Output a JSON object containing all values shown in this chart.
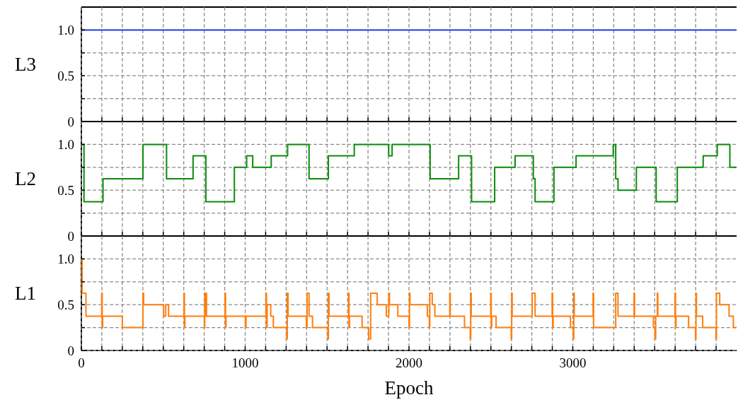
{
  "chart_data": [
    {
      "type": "step",
      "ylabel": "L3",
      "grid": true,
      "tick_labels": "y",
      "xlim": [
        0,
        4000
      ],
      "ylim": [
        0,
        1.25
      ],
      "yticks": [
        {
          "value": 0,
          "label": "0"
        },
        {
          "value": 0.25,
          "label": null
        },
        {
          "value": 0.5,
          "label": "0.5"
        },
        {
          "value": 0.75,
          "label": null
        },
        {
          "value": 1,
          "label": "1.0"
        }
      ],
      "xticks": [
        0,
        {
          "value": 125,
          "label": null
        },
        {
          "value": 250,
          "label": null
        },
        {
          "value": 375,
          "label": null
        },
        {
          "value": 500,
          "label": null
        },
        {
          "value": 625,
          "label": null
        },
        {
          "value": 750,
          "label": null
        },
        {
          "value": 875,
          "label": null
        },
        1000,
        {
          "value": 1125,
          "label": null
        },
        {
          "value": 1250,
          "label": null
        },
        {
          "value": 1375,
          "label": null
        },
        {
          "value": 1500,
          "label": null
        },
        {
          "value": 1625,
          "label": null
        },
        {
          "value": 1750,
          "label": null
        },
        {
          "value": 1875,
          "label": null
        },
        2000,
        {
          "value": 2125,
          "label": null
        },
        {
          "value": 2250,
          "label": null
        },
        {
          "value": 2375,
          "label": null
        },
        {
          "value": 2500,
          "label": null
        },
        {
          "value": 2625,
          "label": null
        },
        {
          "value": 2750,
          "label": null
        },
        {
          "value": 2875,
          "label": null
        },
        3000,
        {
          "value": 3125,
          "label": null
        },
        {
          "value": 3250,
          "label": null
        },
        {
          "value": 3375,
          "label": null
        },
        {
          "value": 3500,
          "label": null
        },
        {
          "value": 3625,
          "label": null
        },
        {
          "value": 3750,
          "label": null
        },
        {
          "value": 3875,
          "label": null
        }
      ],
      "series": [
        {
          "color": "#1f3fe6",
          "x": [
            0,
            4000
          ],
          "values": [
            1,
            1
          ]
        }
      ]
    },
    {
      "type": "step",
      "ylabel": "L2",
      "grid": true,
      "tick_labels": "y",
      "xlim": [
        0,
        4000
      ],
      "ylim": [
        0,
        1.25
      ],
      "yticks": [
        {
          "value": 0,
          "label": "0"
        },
        {
          "value": 0.25,
          "label": null
        },
        {
          "value": 0.5,
          "label": "0.5"
        },
        {
          "value": 0.75,
          "label": null
        },
        {
          "value": 1,
          "label": "1.0"
        }
      ],
      "xticks": [
        0,
        {
          "value": 125,
          "label": null
        },
        {
          "value": 250,
          "label": null
        },
        {
          "value": 375,
          "label": null
        },
        {
          "value": 500,
          "label": null
        },
        {
          "value": 625,
          "label": null
        },
        {
          "value": 750,
          "label": null
        },
        {
          "value": 875,
          "label": null
        },
        1000,
        {
          "value": 1125,
          "label": null
        },
        {
          "value": 1250,
          "label": null
        },
        {
          "value": 1375,
          "label": null
        },
        {
          "value": 1500,
          "label": null
        },
        {
          "value": 1625,
          "label": null
        },
        {
          "value": 1750,
          "label": null
        },
        {
          "value": 1875,
          "label": null
        },
        2000,
        {
          "value": 2125,
          "label": null
        },
        {
          "value": 2250,
          "label": null
        },
        {
          "value": 2375,
          "label": null
        },
        {
          "value": 2500,
          "label": null
        },
        {
          "value": 2625,
          "label": null
        },
        {
          "value": 2750,
          "label": null
        },
        {
          "value": 2875,
          "label": null
        },
        3000,
        {
          "value": 3125,
          "label": null
        },
        {
          "value": 3250,
          "label": null
        },
        {
          "value": 3375,
          "label": null
        },
        {
          "value": 3500,
          "label": null
        },
        {
          "value": 3625,
          "label": null
        },
        {
          "value": 3750,
          "label": null
        },
        {
          "value": 3875,
          "label": null
        }
      ],
      "series": [
        {
          "color": "#0a8c0a",
          "x": [
            0,
            16,
            132,
            376,
            520,
            682,
            760,
            934,
            1009,
            1046,
            1159,
            1259,
            1390,
            1508,
            1666,
            1876,
            1897,
            2129,
            2303,
            2382,
            2523,
            2648,
            2759,
            2770,
            2885,
            3020,
            3247,
            3262,
            3276,
            3388,
            3509,
            3638,
            3796,
            3882,
            3959,
            4000
          ],
          "values": [
            1,
            0.375,
            0.625,
            1,
            0.625,
            0.875,
            0.375,
            0.75,
            0.875,
            0.75,
            0.875,
            1,
            0.625,
            0.875,
            1,
            0.875,
            1,
            0.625,
            0.875,
            0.375,
            0.75,
            0.875,
            0.625,
            0.375,
            0.75,
            0.875,
            1,
            0.625,
            0.5,
            0.75,
            0.375,
            0.75,
            0.875,
            1,
            0.75,
            0.75
          ]
        }
      ]
    },
    {
      "type": "step",
      "ylabel": "L1",
      "xlabel": "Epoch",
      "grid": true,
      "xlim": [
        0,
        4000
      ],
      "ylim": [
        0,
        1.25
      ],
      "yticks": [
        {
          "value": 0,
          "label": "0"
        },
        {
          "value": 0.25,
          "label": null
        },
        {
          "value": 0.5,
          "label": "0.5"
        },
        {
          "value": 0.75,
          "label": null
        },
        {
          "value": 1,
          "label": "1.0"
        }
      ],
      "xticks": [
        {
          "value": 0,
          "label": "0"
        },
        {
          "value": 125,
          "label": null
        },
        {
          "value": 250,
          "label": null
        },
        {
          "value": 375,
          "label": null
        },
        {
          "value": 500,
          "label": null
        },
        {
          "value": 625,
          "label": null
        },
        {
          "value": 750,
          "label": null
        },
        {
          "value": 875,
          "label": null
        },
        1000,
        {
          "value": 1125,
          "label": null
        },
        {
          "value": 1250,
          "label": null
        },
        {
          "value": 1375,
          "label": null
        },
        {
          "value": 1500,
          "label": null
        },
        {
          "value": 1625,
          "label": null
        },
        {
          "value": 1750,
          "label": null
        },
        {
          "value": 1875,
          "label": null
        },
        2000,
        {
          "value": 2125,
          "label": null
        },
        {
          "value": 2250,
          "label": null
        },
        {
          "value": 2375,
          "label": null
        },
        {
          "value": 2500,
          "label": null
        },
        {
          "value": 2625,
          "label": null
        },
        {
          "value": 2750,
          "label": null
        },
        {
          "value": 2875,
          "label": null
        },
        3000,
        {
          "value": 3125,
          "label": null
        },
        {
          "value": 3250,
          "label": null
        },
        {
          "value": 3375,
          "label": null
        },
        {
          "value": 3500,
          "label": null
        },
        {
          "value": 3625,
          "label": null
        },
        {
          "value": 3750,
          "label": null
        },
        {
          "value": 3875,
          "label": null
        }
      ],
      "series": [
        {
          "color": "#ff7f0e",
          "x": [
            0,
            5,
            28,
            124,
            127,
            130,
            250,
            376,
            380,
            502,
            515,
            532,
            626,
            629,
            632,
            751,
            753,
            756,
            760,
            764,
            877,
            880,
            883,
            1001,
            1005,
            1127,
            1130,
            1134,
            1156,
            1172,
            1254,
            1257,
            1262,
            1374,
            1378,
            1390,
            1411,
            1505,
            1508,
            1512,
            1631,
            1634,
            1637,
            1714,
            1754,
            1766,
            1806,
            1862,
            1877,
            1881,
            1932,
            2000,
            2003,
            2006,
            2112,
            2124,
            2127,
            2142,
            2158,
            2249,
            2252,
            2339,
            2374,
            2377,
            2380,
            2499,
            2502,
            2505,
            2532,
            2624,
            2627,
            2630,
            2752,
            2770,
            2874,
            2877,
            2880,
            2986,
            3003,
            3006,
            3009,
            3124,
            3127,
            3262,
            3276,
            3374,
            3377,
            3492,
            3502,
            3506,
            3516,
            3519,
            3624,
            3627,
            3630,
            3707,
            3749,
            3752,
            3755,
            3793,
            3874,
            3877,
            3897,
            3954,
            3980,
            4000
          ],
          "values": [
            1,
            0.625,
            0.375,
            0.625,
            0.25,
            0.375,
            0.25,
            0.625,
            0.5,
            0.375,
            0.5,
            0.375,
            0.625,
            0.25,
            0.375,
            0.25,
            0.625,
            0.375,
            0.625,
            0.375,
            0.625,
            0.25,
            0.375,
            0.25,
            0.375,
            0.625,
            0.25,
            0.5,
            0.375,
            0.25,
            0.125,
            0.625,
            0.375,
            0.25,
            0.625,
            0.375,
            0.25,
            0.125,
            0.625,
            0.375,
            0.625,
            0.25,
            0.375,
            0.25,
            0.125,
            0.625,
            0.5,
            0.375,
            0.625,
            0.5,
            0.375,
            0.25,
            0.625,
            0.5,
            0.375,
            0.25,
            0.625,
            0.5,
            0.375,
            0.625,
            0.375,
            0.25,
            0.125,
            0.625,
            0.375,
            0.625,
            0.25,
            0.375,
            0.25,
            0.125,
            0.625,
            0.375,
            0.625,
            0.375,
            0.625,
            0.25,
            0.375,
            0.25,
            0.125,
            0.625,
            0.375,
            0.625,
            0.25,
            0.625,
            0.375,
            0.625,
            0.375,
            0.25,
            0.125,
            0.375,
            0.625,
            0.375,
            0.625,
            0.25,
            0.375,
            0.25,
            0.125,
            0.625,
            0.375,
            0.25,
            0.125,
            0.625,
            0.5,
            0.375,
            0.25,
            0.25
          ]
        }
      ]
    }
  ]
}
